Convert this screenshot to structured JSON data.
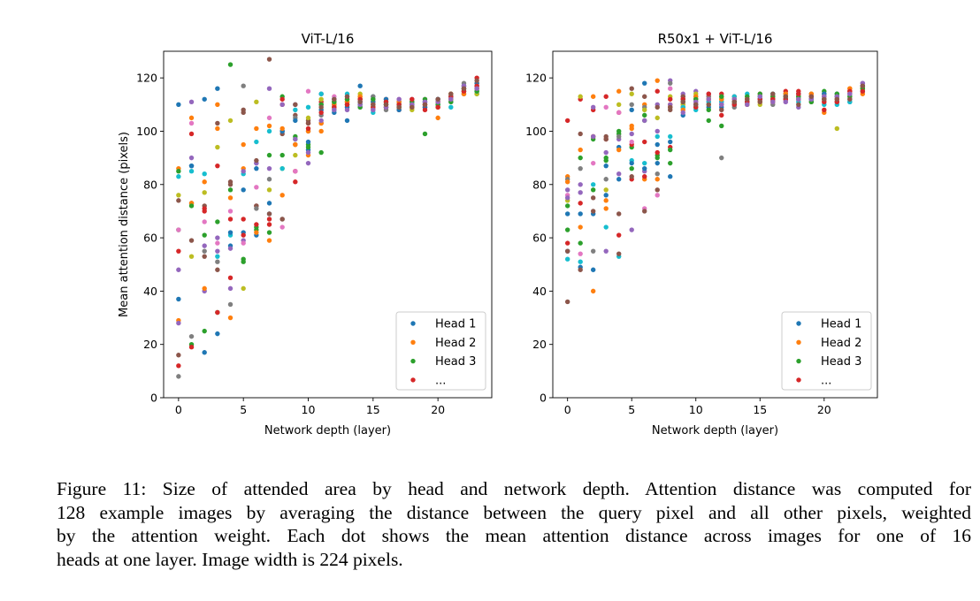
{
  "palette": [
    "#1f77b4",
    "#ff7f0e",
    "#2ca02c",
    "#d62728",
    "#9467bd",
    "#8c564b",
    "#e377c2",
    "#7f7f7f",
    "#bcbd22",
    "#17becf"
  ],
  "chart_data": [
    {
      "type": "scatter",
      "title": "ViT-L/16",
      "xlabel": "Network depth (layer)",
      "ylabel": "Mean attention distance (pixels)",
      "xlim": [
        -1.15,
        24.15
      ],
      "ylim": [
        0,
        130
      ],
      "xticks": [
        0,
        5,
        10,
        15,
        20
      ],
      "yticks": [
        0,
        20,
        40,
        60,
        80,
        100,
        120
      ],
      "grid": false,
      "legend": {
        "placement": "lower-right",
        "entries": [
          "Head 1",
          "Head 2",
          "Head 3",
          "..."
        ]
      },
      "x": [
        0,
        1,
        2,
        3,
        4,
        5,
        6,
        7,
        8,
        9,
        10,
        11,
        12,
        13,
        14,
        15,
        16,
        17,
        18,
        19,
        20,
        21,
        22,
        23
      ],
      "head_values_by_layer": [
        [
          37,
          86,
          63,
          55,
          48,
          74,
          63,
          8,
          76,
          83,
          110,
          29,
          85,
          12,
          28,
          16
        ],
        [
          87,
          105,
          20,
          99,
          111,
          73,
          103,
          23,
          53,
          85,
          87,
          73,
          72,
          19,
          90,
          59
        ],
        [
          112,
          81,
          61,
          70,
          40,
          72,
          66,
          55,
          77,
          84,
          17,
          41,
          25,
          71,
          57,
          53
        ],
        [
          116,
          110,
          32,
          87,
          60,
          103,
          58,
          51,
          94,
          53,
          24,
          101,
          66,
          32,
          55,
          48
        ],
        [
          57,
          75,
          78,
          67,
          41,
          80,
          70,
          35,
          104,
          61,
          62,
          30,
          125,
          45,
          56,
          81
        ],
        [
          78,
          95,
          52,
          67,
          59,
          108,
          58,
          117,
          41,
          84,
          62,
          86,
          51,
          61,
          85,
          107
        ],
        [
          61,
          101,
          63,
          72,
          88,
          72,
          79,
          71,
          111,
          96,
          86,
          62,
          64,
          65,
          88,
          89
        ],
        [
          69,
          102,
          62,
          65,
          86,
          127,
          105,
          82,
          78,
          100,
          73,
          59,
          91,
          67,
          116,
          69
        ],
        [
          100,
          76,
          113,
          112,
          100,
          99,
          64,
          67,
          86,
          86,
          100,
          101,
          91,
          110,
          110,
          67
        ],
        [
          95,
          95,
          97,
          85,
          110,
          106,
          85,
          105,
          91,
          108,
          104,
          95,
          98,
          81,
          97,
          110
        ],
        [
          93,
          91,
          95,
          103,
          88,
          104,
          115,
          100,
          105,
          109,
          96,
          100,
          94,
          101,
          92,
          103
        ],
        [
          114,
          100,
          92,
          111,
          110,
          103,
          114,
          106,
          112,
          114,
          108,
          103,
          110,
          107,
          104,
          109
        ],
        [
          110,
          111,
          109,
          112,
          108,
          110,
          113,
          111,
          109,
          112,
          107,
          110,
          111,
          109,
          108,
          112
        ],
        [
          104,
          112,
          110,
          111,
          109,
          113,
          112,
          110,
          111,
          114,
          109,
          111,
          112,
          110,
          108,
          113
        ],
        [
          117,
          113,
          110,
          112,
          109,
          111,
          110,
          112,
          114,
          110,
          111,
          113,
          109,
          112,
          110,
          111
        ],
        [
          113,
          110,
          109,
          111,
          108,
          112,
          110,
          113,
          109,
          107,
          111,
          110,
          112,
          109,
          108,
          110
        ],
        [
          110,
          111,
          109,
          112,
          110,
          109,
          111,
          108,
          110,
          111,
          112,
          109,
          110,
          111,
          109,
          110
        ],
        [
          111,
          109,
          110,
          108,
          111,
          110,
          112,
          109,
          111,
          110,
          108,
          111,
          109,
          110,
          112,
          109
        ],
        [
          110,
          111,
          109,
          110,
          112,
          109,
          111,
          110,
          108,
          111,
          110,
          109,
          111,
          112,
          110,
          109
        ],
        [
          111,
          110,
          99,
          109,
          111,
          110,
          112,
          109,
          110,
          111,
          109,
          110,
          112,
          108,
          111,
          110
        ],
        [
          112,
          105,
          110,
          111,
          109,
          112,
          110,
          111,
          109,
          110,
          112,
          111,
          110,
          109,
          111,
          112
        ],
        [
          113,
          112,
          111,
          114,
          112,
          113,
          111,
          112,
          114,
          109,
          113,
          112,
          111,
          113,
          112,
          114
        ],
        [
          116,
          115,
          114,
          117,
          116,
          115,
          114,
          118,
          116,
          115,
          117,
          114,
          116,
          115,
          117,
          116
        ],
        [
          117,
          118,
          114,
          120,
          116,
          115,
          117,
          116,
          114,
          115,
          118,
          116,
          115,
          117,
          116,
          119
        ]
      ]
    },
    {
      "type": "scatter",
      "title": "R50x1 + ViT-L/16",
      "xlabel": "Network depth (layer)",
      "ylabel": "",
      "xlim": [
        -1.15,
        24.15
      ],
      "ylim": [
        0,
        130
      ],
      "xticks": [
        0,
        5,
        10,
        15,
        20
      ],
      "yticks": [
        0,
        20,
        40,
        60,
        80,
        100,
        120
      ],
      "grid": false,
      "legend": {
        "placement": "lower-right",
        "entries": [
          "Head 1",
          "Head 2",
          "Head 3",
          "..."
        ]
      },
      "x": [
        0,
        1,
        2,
        3,
        4,
        5,
        6,
        7,
        8,
        9,
        10,
        11,
        12,
        13,
        14,
        15,
        16,
        17,
        18,
        19,
        20,
        21,
        22,
        23
      ],
      "head_values_by_layer": [
        [
          55,
          83,
          72,
          58,
          78,
          36,
          76,
          82,
          74,
          52,
          69,
          81,
          63,
          104,
          75,
          55
        ],
        [
          69,
          93,
          90,
          112,
          80,
          99,
          54,
          86,
          113,
          51,
          49,
          64,
          58,
          73,
          77,
          48
        ],
        [
          48,
          113,
          78,
          108,
          109,
          75,
          88,
          55,
          98,
          80,
          69,
          40,
          97,
          98,
          98,
          70
        ],
        [
          87,
          74,
          90,
          113,
          92,
          98,
          109,
          82,
          78,
          64,
          76,
          71,
          89,
          97,
          55,
          97
        ],
        [
          94,
          115,
          99,
          107,
          97,
          69,
          107,
          98,
          110,
          53,
          82,
          93,
          100,
          61,
          84,
          54
        ],
        [
          108,
          101,
          94,
          95,
          99,
          116,
          96,
          110,
          114,
          89,
          88,
          102,
          86,
          82,
          63,
          83
        ],
        [
          118,
          110,
          106,
          96,
          85,
          113,
          71,
          109,
          108,
          88,
          86,
          82,
          104,
          83,
          104,
          70
        ],
        [
          95,
          119,
          91,
          115,
          110,
          109,
          76,
          84,
          105,
          98,
          88,
          82,
          90,
          92,
          100,
          78
        ],
        [
          96,
          109,
          88,
          94,
          119,
          108,
          116,
          118,
          113,
          98,
          83,
          110,
          93,
          112,
          110,
          109
        ],
        [
          112,
          110,
          109,
          113,
          114,
          113,
          111,
          112,
          110,
          109,
          106,
          108,
          111,
          112,
          107,
          111
        ],
        [
          113,
          111,
          112,
          110,
          115,
          109,
          111,
          112,
          114,
          108,
          110,
          113,
          112,
          109,
          111,
          110
        ],
        [
          114,
          112,
          104,
          113,
          111,
          112,
          114,
          113,
          110,
          111,
          109,
          112,
          108,
          114,
          112,
          110
        ],
        [
          112,
          113,
          102,
          114,
          111,
          110,
          113,
          90,
          112,
          111,
          109,
          112,
          113,
          106,
          110,
          108
        ],
        [
          111,
          112,
          110,
          113,
          110,
          111,
          112,
          109,
          111,
          113,
          110,
          112,
          111,
          110,
          112,
          111
        ],
        [
          112,
          113,
          111,
          110,
          112,
          111,
          113,
          112,
          110,
          114,
          111,
          112,
          113,
          111,
          110,
          112
        ],
        [
          113,
          112,
          111,
          114,
          112,
          113,
          111,
          112,
          110,
          113,
          112,
          111,
          114,
          112,
          113,
          111
        ],
        [
          112,
          113,
          114,
          112,
          111,
          113,
          112,
          110,
          113,
          114,
          112,
          111,
          113,
          112,
          111,
          114
        ],
        [
          114,
          112,
          113,
          115,
          112,
          113,
          111,
          114,
          112,
          113,
          112,
          114,
          113,
          112,
          111,
          113
        ],
        [
          113,
          114,
          112,
          115,
          109,
          113,
          114,
          112,
          113,
          111,
          114,
          112,
          113,
          114,
          112,
          110
        ],
        [
          112,
          114,
          113,
          112,
          114,
          111,
          113,
          112,
          114,
          113,
          112,
          114,
          111,
          113,
          112,
          113
        ],
        [
          113,
          107,
          115,
          108,
          112,
          114,
          111,
          113,
          112,
          110,
          114,
          113,
          112,
          111,
          113,
          112
        ],
        [
          114,
          113,
          112,
          111,
          114,
          113,
          112,
          111,
          101,
          110,
          113,
          112,
          114,
          111,
          113,
          112
        ],
        [
          111,
          116,
          114,
          115,
          113,
          115,
          114,
          112,
          113,
          111,
          114,
          116,
          113,
          115,
          114,
          112
        ],
        [
          117,
          116,
          115,
          117,
          118,
          116,
          115,
          117,
          116,
          115,
          117,
          114,
          116,
          115,
          118,
          117
        ]
      ]
    }
  ],
  "caption": {
    "lines": [
      "Figure 11: Size of attended area by head and network depth. Attention distance was computed for",
      "128 example images by averaging the distance between the query pixel and all other pixels, weighted",
      "by the attention weight. Each dot shows the mean attention distance across images for one of 16",
      "heads at one layer. Image width is 224 pixels."
    ]
  }
}
